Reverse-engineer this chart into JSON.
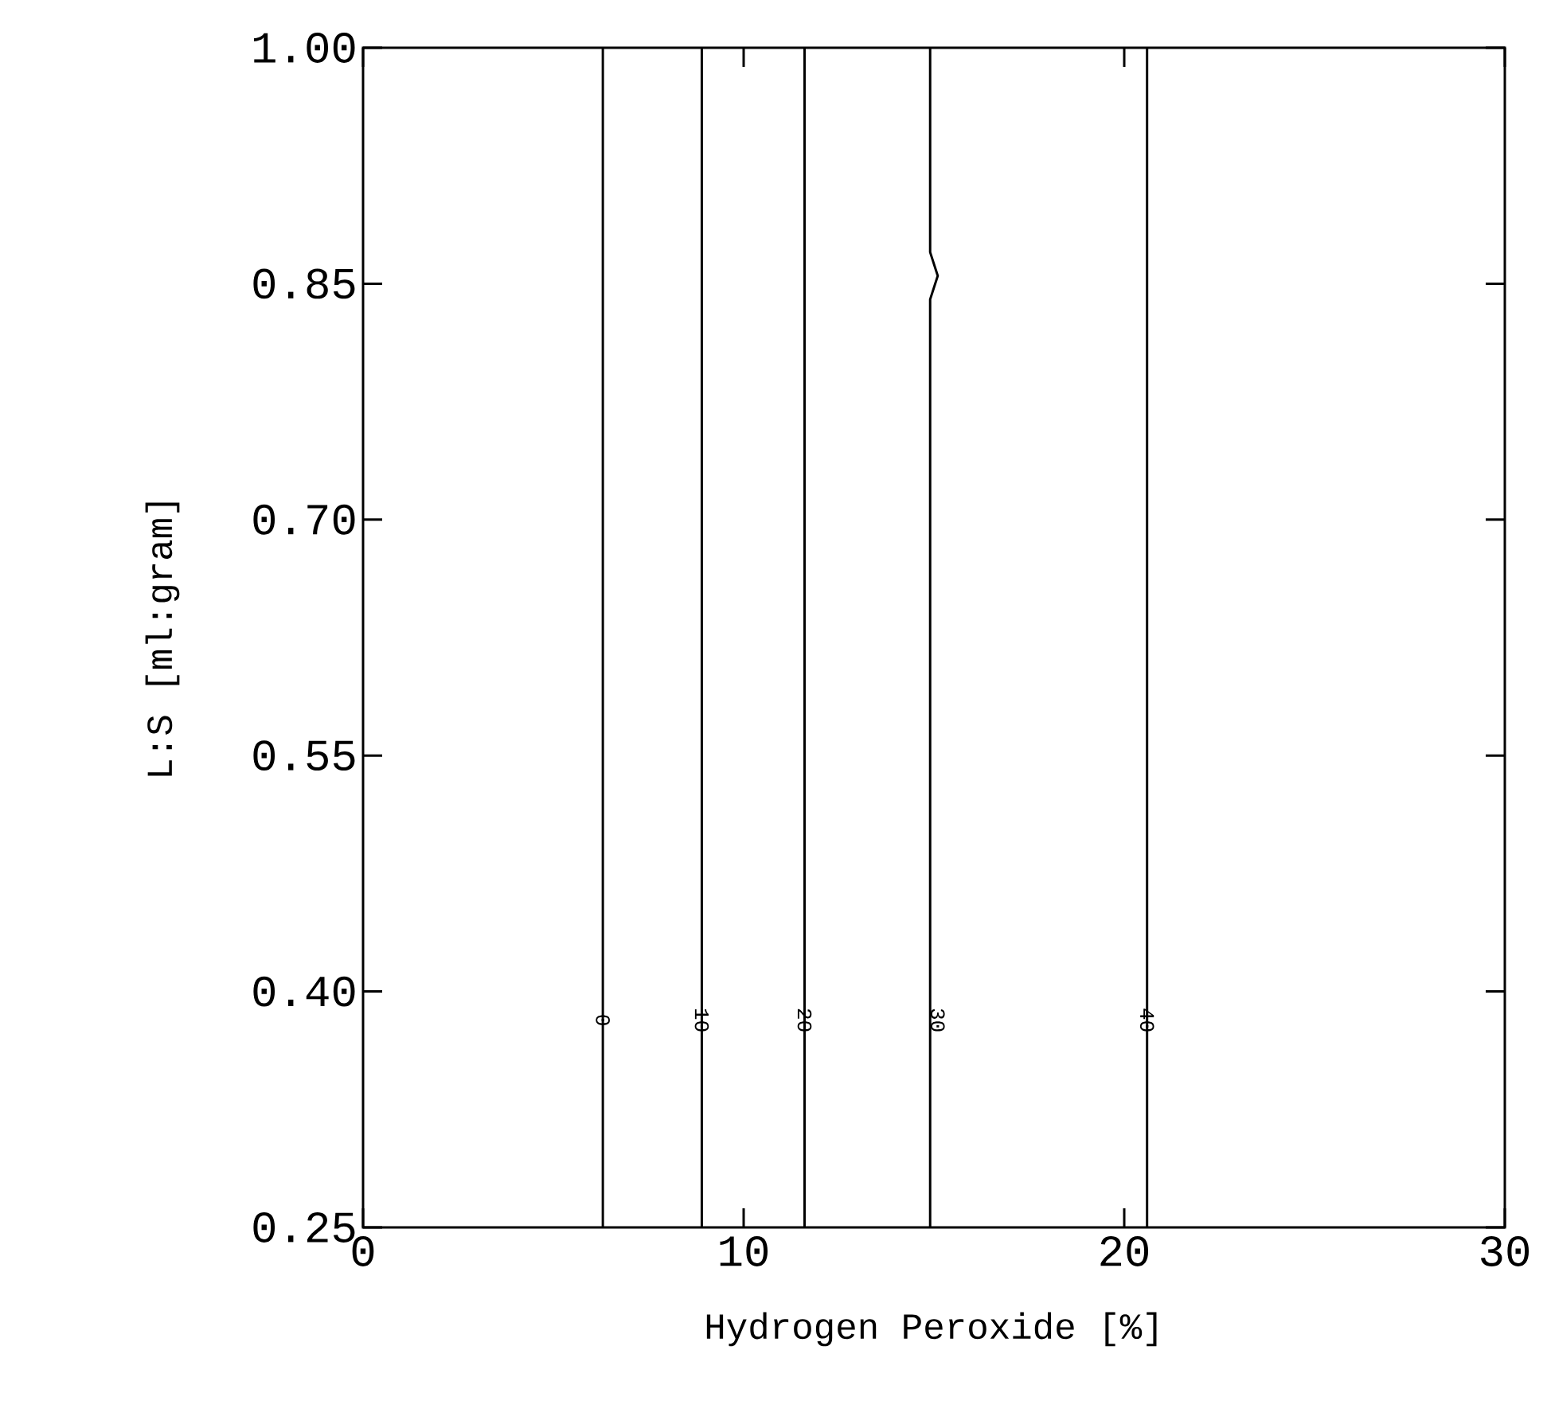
{
  "chart_data": {
    "type": "line",
    "xlabel": "Hydrogen Peroxide [%]",
    "ylabel": "L:S [ml:gram]",
    "xlim": [
      0,
      30
    ],
    "ylim": [
      0.25,
      1.0
    ],
    "xticks": [
      0,
      10,
      20,
      30
    ],
    "yticks": [
      0.25,
      {
        "value": 0.4,
        "label": "0.40"
      },
      0.55,
      {
        "value": 0.7,
        "label": "0.70"
      },
      0.85,
      {
        "value": 1.0,
        "label": "1.00"
      }
    ],
    "line_style": "solid",
    "series": [
      {
        "name": "0",
        "color": "#000000",
        "x": [
          6.3,
          6.3
        ],
        "values": [
          0.25,
          1.0
        ]
      },
      {
        "name": "10",
        "color": "#000000",
        "x": [
          8.9,
          8.9
        ],
        "values": [
          0.25,
          1.0
        ]
      },
      {
        "name": "20",
        "color": "#000000",
        "x": [
          11.6,
          11.6
        ],
        "values": [
          0.25,
          1.0
        ]
      },
      {
        "name": "30",
        "color": "#000000",
        "x": [
          14.9,
          14.9,
          15.1,
          14.9,
          14.9
        ],
        "values": [
          0.25,
          0.84,
          0.855,
          0.87,
          1.0
        ]
      },
      {
        "name": "40",
        "color": "#000000",
        "x": [
          20.6,
          20.6
        ],
        "values": [
          0.25,
          1.0
        ]
      }
    ]
  }
}
